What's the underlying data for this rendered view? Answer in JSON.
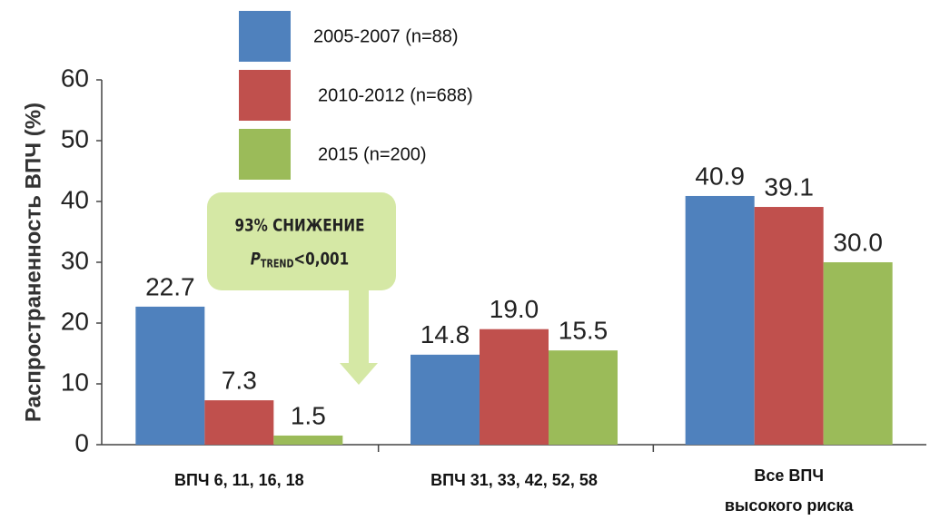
{
  "chart_data": {
    "type": "bar",
    "y_label": "Распространенность ВПЧ (%)",
    "categories": [
      "ВПЧ 6, 11, 16, 18",
      "ВПЧ 31, 33, 42, 52, 58",
      "Все ВПЧ\nвысокого риска"
    ],
    "series": [
      {
        "name": "2005-2007 (n=88)",
        "color": "#4f81bd",
        "values": [
          22.7,
          14.8,
          40.9
        ],
        "value_labels": [
          "22.7",
          "14.8",
          "40.9"
        ]
      },
      {
        "name": "2010-2012 (n=688)",
        "color": "#c0504d",
        "values": [
          7.3,
          19.0,
          39.1
        ],
        "value_labels": [
          "7.3",
          "19.0",
          "39.1"
        ]
      },
      {
        "name": "2015 (n=200)",
        "color": "#9bbb59",
        "values": [
          1.5,
          15.5,
          30.0
        ],
        "value_labels": [
          "1.5",
          "15.5",
          "30.0"
        ]
      }
    ],
    "ylim": [
      0,
      60
    ],
    "yticks": [
      0,
      10,
      20,
      30,
      40,
      50,
      60
    ],
    "annotation": {
      "line1": "93% СНИЖЕНИЕ",
      "p": "P",
      "sub": "TREND",
      "rest": "<0,001"
    }
  }
}
